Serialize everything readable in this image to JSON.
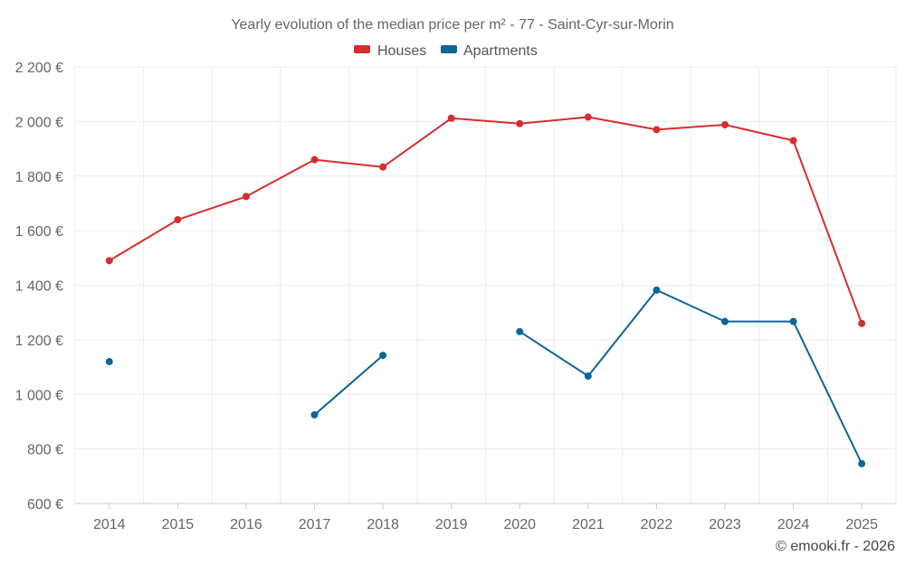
{
  "chart_data": {
    "type": "line",
    "title": "Yearly evolution of the median price per m² - 77 - Saint-Cyr-sur-Morin",
    "categories": [
      "2014",
      "2015",
      "2016",
      "2017",
      "2018",
      "2019",
      "2020",
      "2021",
      "2022",
      "2023",
      "2024",
      "2025"
    ],
    "ylim": [
      600,
      2200
    ],
    "yticks": [
      600,
      800,
      1000,
      1200,
      1400,
      1600,
      1800,
      2000,
      2200
    ],
    "ytick_labels": [
      "600 €",
      "800 €",
      "1 000 €",
      "1 200 €",
      "1 400 €",
      "1 600 €",
      "1 800 €",
      "2 000 €",
      "2 200 €"
    ],
    "xlabel": "",
    "ylabel": "",
    "grid": true,
    "legend_position": "top-center",
    "series": [
      {
        "name": "Houses",
        "color": "#d32f2f",
        "values": [
          1490,
          1640,
          1725,
          1860,
          1833,
          2012,
          1992,
          2016,
          1970,
          1988,
          1930,
          1260
        ]
      },
      {
        "name": "Apartments",
        "color": "#0d6596",
        "values": [
          1120,
          null,
          null,
          925,
          1143,
          null,
          1230,
          1067,
          1382,
          1267,
          1267,
          746
        ]
      }
    ]
  },
  "credit": "© emooki.fr - 2026"
}
